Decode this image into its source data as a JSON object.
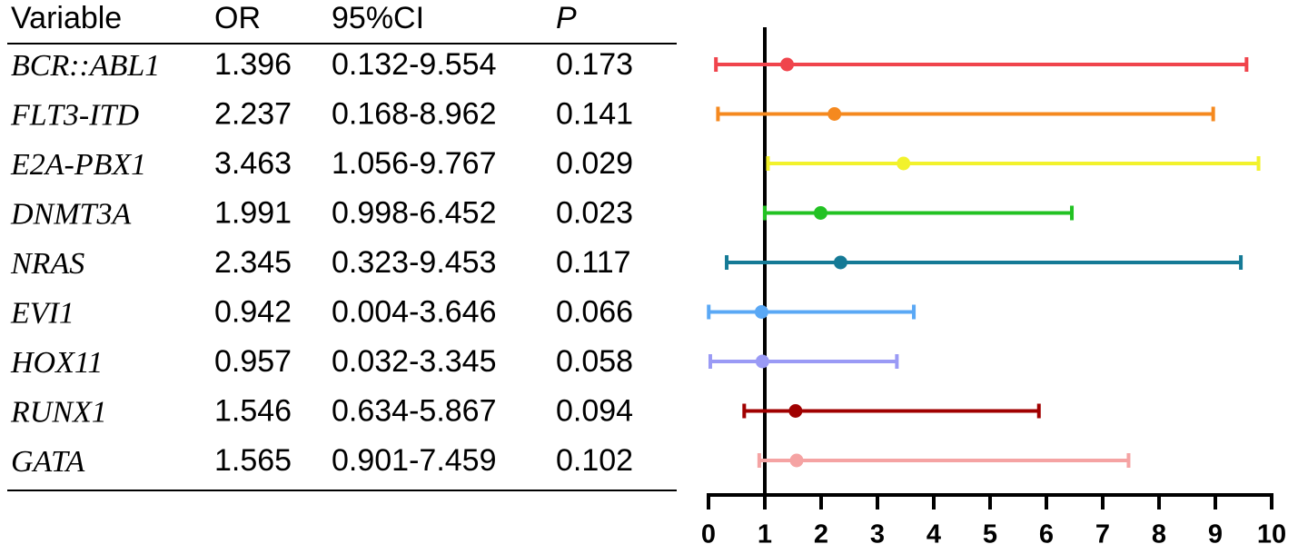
{
  "table": {
    "headers": [
      "Variable",
      "OR",
      "95%CI",
      "P"
    ],
    "ci": [
      "0.132-9.554",
      "0.168-8.962",
      "1.056-9.767",
      "0.998-6.452",
      "0.323-9.453",
      "0.004-3.646",
      "0.032-3.345",
      "0.634-5.867",
      "0.901-7.459"
    ],
    "p": [
      0.173,
      0.141,
      0.029,
      0.023,
      0.117,
      0.066,
      0.058,
      0.094,
      0.102
    ]
  },
  "chart_data": {
    "type": "forest",
    "categories": [
      "BCR::ABL1",
      "FLT3-ITD",
      "E2A-PBX1",
      "DNMT3A",
      "NRAS",
      "EVI1",
      "HOX11",
      "RUNX1",
      "GATA"
    ],
    "values": [
      1.396,
      2.237,
      3.463,
      1.991,
      2.345,
      0.942,
      0.957,
      1.546,
      1.565
    ],
    "lower": [
      0.132,
      0.168,
      1.056,
      0.998,
      0.323,
      0.004,
      0.032,
      0.634,
      0.901
    ],
    "upper": [
      9.554,
      8.962,
      9.767,
      6.452,
      9.453,
      3.646,
      3.345,
      5.867,
      7.459
    ],
    "colors": [
      "#f0444c",
      "#f5891f",
      "#f2f22c",
      "#22c223",
      "#157a96",
      "#5aa8f5",
      "#9a9af5",
      "#a00000",
      "#f5a3a3"
    ],
    "reference": 1,
    "xlim": [
      0,
      10
    ],
    "xticks": [
      0,
      1,
      2,
      3,
      4,
      5,
      6,
      7,
      8,
      9,
      10
    ]
  }
}
